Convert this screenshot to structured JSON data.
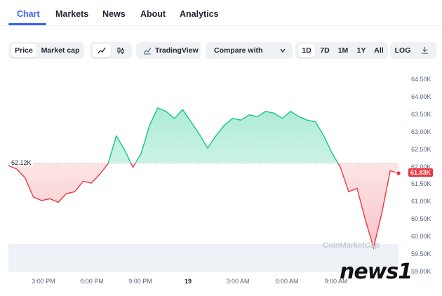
{
  "tabs": [
    {
      "label": "Chart",
      "active": true
    },
    {
      "label": "Markets",
      "active": false
    },
    {
      "label": "News",
      "active": false
    },
    {
      "label": "About",
      "active": false
    },
    {
      "label": "Analytics",
      "active": false
    }
  ],
  "toolbar": {
    "type_toggle": [
      "Price",
      "Market cap"
    ],
    "selected_type": "Price",
    "tradingview_label": "TradingView",
    "compare_label": "Compare with",
    "ranges": [
      "1D",
      "7D",
      "1M",
      "1Y",
      "All"
    ],
    "selected_range": "1D",
    "log_label": "LOG"
  },
  "chart_data": {
    "type": "area",
    "reference_price_label": "62.12K",
    "current_price_label": "61.83K",
    "reference_price": 62.12,
    "y_ticks": [
      "64.50K",
      "64.00K",
      "63.50K",
      "63.00K",
      "62.50K",
      "62.00K",
      "61.50K",
      "61.00K",
      "60.50K",
      "60.00K",
      "59.50K",
      "59.00K"
    ],
    "ylim": [
      59.0,
      64.5
    ],
    "x_ticks": [
      "3:00 PM",
      "6:00 PM",
      "9:00 PM",
      "19",
      "3:00 AM",
      "6:00 AM",
      "9:00 AM"
    ],
    "x": [
      0,
      0.5,
      1,
      1.5,
      2,
      2.5,
      3,
      3.5,
      4,
      4.5,
      5,
      5.5,
      6,
      6.5,
      7,
      7.5,
      8,
      8.5,
      9,
      9.5,
      10,
      10.5,
      11,
      11.5,
      12,
      12.5,
      13,
      13.5,
      14,
      14.5,
      15,
      15.5,
      16,
      16.5,
      17,
      17.5,
      18,
      18.5,
      19,
      19.5,
      20,
      20.5,
      21,
      21.5,
      22,
      22.5,
      23,
      23.5
    ],
    "values": [
      62.05,
      61.95,
      61.7,
      61.15,
      61.05,
      61.1,
      61.0,
      61.25,
      61.3,
      61.6,
      61.55,
      61.8,
      62.1,
      62.9,
      62.5,
      62.0,
      62.4,
      63.2,
      63.7,
      63.6,
      63.4,
      63.65,
      63.3,
      62.95,
      62.55,
      62.9,
      63.2,
      63.4,
      63.35,
      63.5,
      63.45,
      63.6,
      63.55,
      63.4,
      63.6,
      63.45,
      63.35,
      63.3,
      62.9,
      62.4,
      62.0,
      61.3,
      61.4,
      60.5,
      59.7,
      60.7,
      61.9,
      61.83
    ],
    "series": [
      {
        "name": "Price",
        "colors": {
          "up": "#16c784",
          "down": "#ea3943"
        }
      }
    ]
  },
  "watermark": "CoinMarketCap",
  "news_watermark": "news1",
  "colors": {
    "accent": "#3861fb",
    "up": "#16c784",
    "down": "#ea3943"
  },
  "icons": [
    "line-chart-icon",
    "candlestick-icon",
    "tradingview-icon",
    "chevron-down-icon",
    "download-icon"
  ]
}
